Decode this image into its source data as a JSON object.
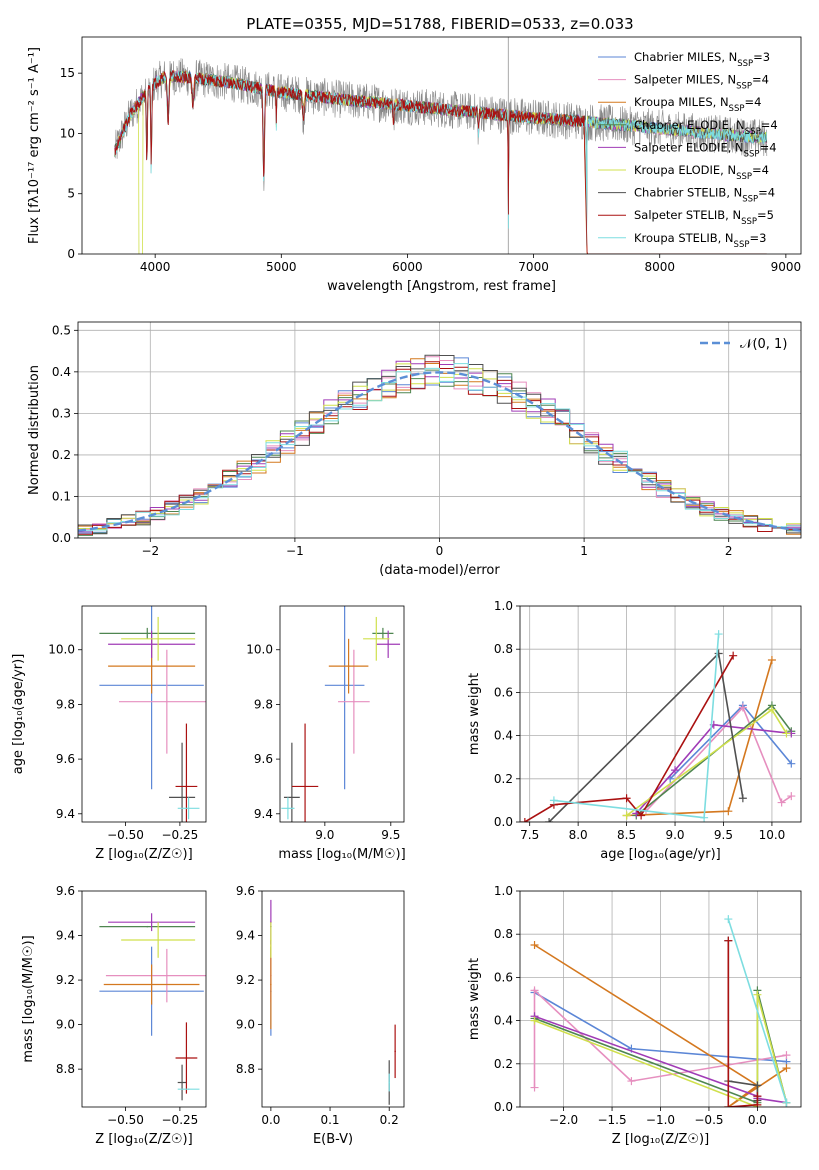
{
  "title": "PLATE=0355, MJD=51788, FIBERID=0533, z=0.033",
  "colors": [
    "#5b86d6",
    "#e68fbf",
    "#d4781f",
    "#4f8650",
    "#a03bb6",
    "#d0e04c",
    "#505050",
    "#aa1111",
    "#7ddde0"
  ],
  "chart_data": [
    {
      "type": "line",
      "name": "spectrum",
      "xlabel": "wavelength [Angstrom, rest frame]",
      "ylabel": "Flux [fλ10⁻¹⁷ erg cm⁻² s⁻¹ A⁻¹]",
      "xlim": [
        3420,
        9120
      ],
      "ylim": [
        0,
        18
      ],
      "xticks": [
        4000,
        5000,
        6000,
        7000,
        8000,
        9000
      ],
      "yticks": [
        0,
        5,
        10,
        15
      ],
      "legend": {
        "placement": "top-right",
        "entries": [
          {
            "model": "Chabrier MILES",
            "nssp": 3
          },
          {
            "model": "Salpeter MILES",
            "nssp": 4
          },
          {
            "model": "Kroupa MILES",
            "nssp": 4
          },
          {
            "model": "Chabrier ELODIE",
            "nssp": 4
          },
          {
            "model": "Salpeter ELODIE",
            "nssp": 4
          },
          {
            "model": "Kroupa ELODIE",
            "nssp": 4
          },
          {
            "model": "Chabrier STELIB",
            "nssp": 4
          },
          {
            "model": "Salpeter STELIB",
            "nssp": 5
          },
          {
            "model": "Kroupa STELIB",
            "nssp": 3
          }
        ]
      },
      "data_continuum": {
        "x": [
          3680,
          3800,
          3900,
          4000,
          4100,
          4200,
          4400,
          4600,
          4800,
          5000,
          5500,
          6000,
          6500,
          7000,
          7400,
          7800,
          8200,
          8600,
          8850
        ],
        "y": [
          8.5,
          11.5,
          13.0,
          14.2,
          14.8,
          14.7,
          14.5,
          14.2,
          13.8,
          13.4,
          12.8,
          12.3,
          11.8,
          11.3,
          11.0,
          10.6,
          10.2,
          9.8,
          9.6
        ]
      },
      "model_range": [
        3680,
        8850
      ],
      "absorption_features": [
        3934,
        3969,
        4102,
        4300,
        4861,
        4960,
        5175,
        5890,
        6563,
        6800,
        7420
      ]
    },
    {
      "type": "bar",
      "name": "residual-histogram",
      "xlabel": "(data-model)/error",
      "ylabel": "Normed distribution",
      "xlim": [
        -2.5,
        2.5
      ],
      "ylim": [
        0,
        0.52
      ],
      "xticks": [
        -2,
        -1,
        0,
        1,
        2
      ],
      "yticks": [
        0.0,
        0.1,
        0.2,
        0.3,
        0.4,
        0.5
      ],
      "bin_width": 0.1,
      "reference_curve": {
        "label": "𝒩(0, 1)",
        "mean": 0,
        "sigma": 1,
        "placement": "top-right"
      }
    },
    {
      "type": "scatter",
      "name": "age-vs-metallicity",
      "xlabel": "Z [log₁₀(Z/Z☉)]",
      "ylabel": "age  [log₁₀(age/yr)]",
      "xlim": [
        -0.7,
        -0.13
      ],
      "ylim": [
        9.37,
        10.16
      ],
      "xticks": [
        -0.5,
        -0.25
      ],
      "yticks": [
        9.4,
        9.6,
        9.8,
        10.0
      ],
      "points": [
        {
          "x": -0.38,
          "y": 9.87,
          "xerr": 0.24,
          "yerr": 0.38
        },
        {
          "x": -0.31,
          "y": 9.81,
          "xerr": 0.22,
          "yerr": 0.19
        },
        {
          "x": -0.38,
          "y": 9.94,
          "xerr": 0.2,
          "yerr": 0.1
        },
        {
          "x": -0.4,
          "y": 10.06,
          "xerr": 0.22,
          "yerr": 0.02
        },
        {
          "x": -0.38,
          "y": 10.02,
          "xerr": 0.2,
          "yerr": 0.05
        },
        {
          "x": -0.35,
          "y": 10.04,
          "xerr": 0.17,
          "yerr": 0.08
        },
        {
          "x": -0.24,
          "y": 9.46,
          "xerr": 0.06,
          "yerr": 0.2
        },
        {
          "x": -0.22,
          "y": 9.5,
          "xerr": 0.05,
          "yerr": 0.23
        },
        {
          "x": -0.21,
          "y": 9.42,
          "xerr": 0.05,
          "yerr": 0.04
        }
      ]
    },
    {
      "type": "scatter",
      "name": "age-vs-mass",
      "xlabel": "mass [log₁₀(M/M☉)]",
      "ylabel": "",
      "xlim": [
        8.66,
        9.6
      ],
      "ylim": [
        9.37,
        10.16
      ],
      "xticks": [
        9.0,
        9.5
      ],
      "yticks": [
        9.4,
        9.6,
        9.8,
        10.0
      ],
      "points": [
        {
          "x": 9.15,
          "y": 9.87,
          "xerr": 0.15,
          "yerr": 0.38
        },
        {
          "x": 9.22,
          "y": 9.81,
          "xerr": 0.12,
          "yerr": 0.19
        },
        {
          "x": 9.18,
          "y": 9.94,
          "xerr": 0.15,
          "yerr": 0.1
        },
        {
          "x": 9.44,
          "y": 10.06,
          "xerr": 0.08,
          "yerr": 0.02
        },
        {
          "x": 9.48,
          "y": 10.02,
          "xerr": 0.09,
          "yerr": 0.05
        },
        {
          "x": 9.39,
          "y": 10.04,
          "xerr": 0.1,
          "yerr": 0.08
        },
        {
          "x": 8.75,
          "y": 9.46,
          "xerr": 0.06,
          "yerr": 0.2
        },
        {
          "x": 8.85,
          "y": 9.5,
          "xerr": 0.1,
          "yerr": 0.23
        },
        {
          "x": 8.72,
          "y": 9.42,
          "xerr": 0.05,
          "yerr": 0.04
        }
      ]
    },
    {
      "type": "line",
      "name": "mass-weight-vs-age",
      "xlabel": "age  [log₁₀(age/yr)]",
      "ylabel": "mass weight",
      "xlim": [
        7.4,
        10.3
      ],
      "ylim": [
        0,
        1
      ],
      "xticks": [
        7.5,
        8.0,
        8.5,
        9.0,
        9.5,
        10.0
      ],
      "yticks": [
        0.0,
        0.2,
        0.4,
        0.6,
        0.8,
        1.0
      ],
      "series": [
        {
          "x": [
            8.95,
            9.7,
            10.2
          ],
          "y": [
            0.2,
            0.54,
            0.27
          ]
        },
        {
          "x": [
            8.7,
            9.7,
            10.1,
            10.2
          ],
          "y": [
            0.05,
            0.53,
            0.09,
            0.12
          ]
        },
        {
          "x": [
            8.5,
            9.55,
            10.0
          ],
          "y": [
            0.03,
            0.05,
            0.75
          ]
        },
        {
          "x": [
            8.6,
            10.0,
            10.2
          ],
          "y": [
            0.03,
            0.54,
            0.42
          ]
        },
        {
          "x": [
            8.6,
            9.0,
            9.4,
            10.2
          ],
          "y": [
            0.04,
            0.24,
            0.45,
            0.41
          ]
        },
        {
          "x": [
            8.5,
            10.0,
            10.15
          ],
          "y": [
            0.03,
            0.52,
            0.41
          ]
        },
        {
          "x": [
            7.7,
            9.45,
            9.7
          ],
          "y": [
            0.0,
            0.78,
            0.11
          ]
        },
        {
          "x": [
            7.45,
            7.75,
            8.5,
            8.65,
            9.6
          ],
          "y": [
            0.0,
            0.08,
            0.11,
            0.03,
            0.77
          ]
        },
        {
          "x": [
            7.75,
            9.3,
            9.45
          ],
          "y": [
            0.1,
            0.02,
            0.87
          ]
        }
      ]
    },
    {
      "type": "scatter",
      "name": "mass-vs-metallicity",
      "xlabel": "Z [log₁₀(Z/Z☉)]",
      "ylabel": "mass [log₁₀(M/M☉)]",
      "xlim": [
        -0.7,
        -0.13
      ],
      "ylim": [
        8.63,
        9.6
      ],
      "xticks": [
        -0.5,
        -0.25
      ],
      "yticks": [
        8.8,
        9.0,
        9.2,
        9.4,
        9.6
      ],
      "points": [
        {
          "x": -0.38,
          "y": 9.15,
          "xerr": 0.24,
          "yerr": 0.2
        },
        {
          "x": -0.31,
          "y": 9.22,
          "xerr": 0.28,
          "yerr": 0.12
        },
        {
          "x": -0.38,
          "y": 9.18,
          "xerr": 0.22,
          "yerr": 0.09
        },
        {
          "x": -0.4,
          "y": 9.44,
          "xerr": 0.22,
          "yerr": 0.0
        },
        {
          "x": -0.38,
          "y": 9.46,
          "xerr": 0.2,
          "yerr": 0.04
        },
        {
          "x": -0.35,
          "y": 9.38,
          "xerr": 0.17,
          "yerr": 0.08
        },
        {
          "x": -0.24,
          "y": 8.74,
          "xerr": 0.02,
          "yerr": 0.08
        },
        {
          "x": -0.22,
          "y": 8.85,
          "xerr": 0.05,
          "yerr": 0.16
        },
        {
          "x": -0.21,
          "y": 8.71,
          "xerr": 0.05,
          "yerr": 0.0
        }
      ]
    },
    {
      "type": "scatter",
      "name": "mass-vs-extinction",
      "xlabel": "E(B-V)",
      "ylabel": "",
      "xlim": [
        -0.015,
        0.225
      ],
      "ylim": [
        8.63,
        9.6
      ],
      "xticks": [
        0.0,
        0.1,
        0.2
      ],
      "yticks": [
        8.8,
        9.0,
        9.2,
        9.4,
        9.6
      ],
      "points": [
        {
          "x": 0.0,
          "y": 9.15,
          "xerr": 0.0,
          "yerr": 0.2
        },
        {
          "x": 0.0,
          "y": 9.22,
          "xerr": 0.0,
          "yerr": 0.12
        },
        {
          "x": 0.0,
          "y": 9.18,
          "xerr": 0.0,
          "yerr": 0.2
        },
        {
          "x": 0.0,
          "y": 9.44,
          "xerr": 0.0,
          "yerr": 0.0
        },
        {
          "x": 0.0,
          "y": 9.46,
          "xerr": 0.0,
          "yerr": 0.1
        },
        {
          "x": 0.0,
          "y": 9.38,
          "xerr": 0.0,
          "yerr": 0.08
        },
        {
          "x": 0.2,
          "y": 8.74,
          "xerr": 0.0,
          "yerr": 0.1
        },
        {
          "x": 0.21,
          "y": 8.88,
          "xerr": 0.0,
          "yerr": 0.12
        },
        {
          "x": 0.2,
          "y": 8.74,
          "xerr": 0.0,
          "yerr": 0.04
        }
      ]
    },
    {
      "type": "line",
      "name": "mass-weight-vs-metallicity",
      "xlabel": "Z [log₁₀(Z/Z☉)]",
      "ylabel": "mass weight",
      "xlim": [
        -2.45,
        0.45
      ],
      "ylim": [
        0,
        1
      ],
      "xticks": [
        -2.0,
        -1.5,
        -1.0,
        -0.5,
        0.0
      ],
      "yticks": [
        0.0,
        0.2,
        0.4,
        0.6,
        0.8,
        1.0
      ],
      "series": [
        {
          "x": [
            -2.3,
            -1.3,
            0.3
          ],
          "y": [
            0.53,
            0.27,
            0.21
          ]
        },
        {
          "x": [
            -2.3,
            -2.3,
            -1.3,
            0.3
          ],
          "y": [
            0.09,
            0.54,
            0.12,
            0.24
          ]
        },
        {
          "x": [
            -2.3,
            0.0,
            -0.3,
            0.3
          ],
          "y": [
            0.75,
            0.1,
            0.0,
            0.18
          ]
        },
        {
          "x": [
            -2.3,
            0.0,
            0.0,
            0.3
          ],
          "y": [
            0.41,
            0.02,
            0.54,
            0.02
          ]
        },
        {
          "x": [
            -2.3,
            0.0,
            0.0,
            0.3
          ],
          "y": [
            0.42,
            0.05,
            0.04,
            0.02
          ]
        },
        {
          "x": [
            -2.3,
            0.0,
            0.0,
            0.3
          ],
          "y": [
            0.4,
            0.0,
            0.52,
            0.02
          ]
        },
        {
          "x": [
            -0.3,
            -0.3,
            0.0,
            0.0
          ],
          "y": [
            0.77,
            0.12,
            0.1,
            0.03
          ]
        },
        {
          "x": [
            -0.3,
            -0.3,
            0.0,
            0.0
          ],
          "y": [
            0.77,
            0.0,
            0.01,
            0.05
          ]
        },
        {
          "x": [
            -0.3,
            0.3
          ],
          "y": [
            0.87,
            0.02
          ]
        }
      ]
    }
  ]
}
